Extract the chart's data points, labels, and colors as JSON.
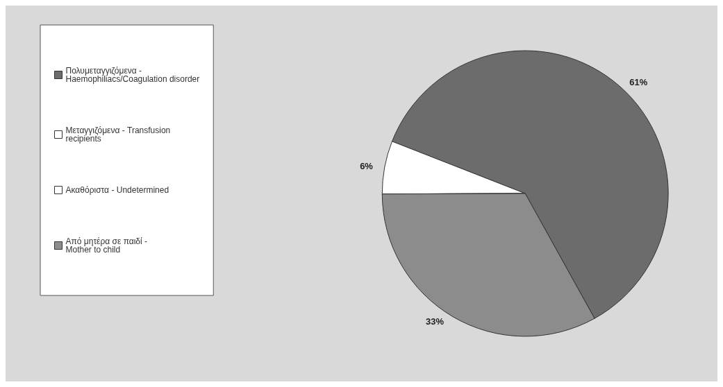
{
  "chart_data": {
    "type": "pie",
    "categories": [
      "Πολυμεταγγιζόμενα - Haemophiliacs/Coagulation disorder",
      "Μεταγγιζόμενα - Transfusion recipients",
      "Ακαθόριστα - Undetermined",
      "Από μητέρα σε παιδί - Mother to child"
    ],
    "values": [
      61,
      6,
      0,
      33
    ],
    "value_labels": [
      "61%",
      "6%",
      null,
      "33%"
    ],
    "colors": [
      "#6c6c6c",
      "#ffffff",
      "#ffffff",
      "#8c8c8c"
    ],
    "legend": "left"
  }
}
